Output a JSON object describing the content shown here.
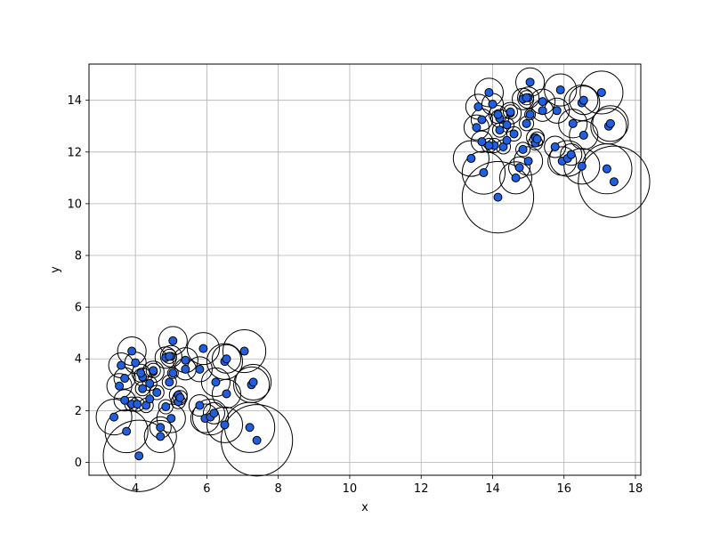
{
  "chart_data": {
    "type": "scatter",
    "xlabel": "x",
    "ylabel": "y",
    "xlim": [
      2.7,
      18.15
    ],
    "ylim": [
      -0.5,
      15.4
    ],
    "xticks": [
      4,
      6,
      8,
      10,
      12,
      14,
      16,
      18
    ],
    "yticks": [
      0,
      2,
      4,
      6,
      8,
      10,
      12,
      14
    ],
    "grid": true,
    "marker_color": "#1f5fe0",
    "edge_color": "#000000",
    "series": [
      {
        "points": [
          {
            "x": 4.1,
            "y": 0.25,
            "r": 1.0
          },
          {
            "x": 7.4,
            "y": 0.85,
            "r": 1.0
          },
          {
            "x": 4.7,
            "y": 1.0,
            "r": 0.45
          },
          {
            "x": 7.2,
            "y": 1.35,
            "r": 0.7
          },
          {
            "x": 3.75,
            "y": 1.2,
            "r": 0.6
          },
          {
            "x": 4.7,
            "y": 1.35,
            "r": 0.3
          },
          {
            "x": 6.5,
            "y": 1.45,
            "r": 0.5
          },
          {
            "x": 3.4,
            "y": 1.75,
            "r": 0.5
          },
          {
            "x": 5.0,
            "y": 1.7,
            "r": 0.4
          },
          {
            "x": 5.95,
            "y": 1.7,
            "r": 0.4
          },
          {
            "x": 6.1,
            "y": 1.75,
            "r": 0.5
          },
          {
            "x": 6.2,
            "y": 1.9,
            "r": 0.3
          },
          {
            "x": 4.85,
            "y": 2.15,
            "r": 0.2
          },
          {
            "x": 4.3,
            "y": 2.2,
            "r": 0.2
          },
          {
            "x": 3.9,
            "y": 2.25,
            "r": 0.2
          },
          {
            "x": 4.05,
            "y": 2.25,
            "r": 0.2
          },
          {
            "x": 5.8,
            "y": 2.2,
            "r": 0.3
          },
          {
            "x": 5.2,
            "y": 2.35,
            "r": 0.2
          },
          {
            "x": 3.7,
            "y": 2.4,
            "r": 0.3
          },
          {
            "x": 4.4,
            "y": 2.45,
            "r": 0.1
          },
          {
            "x": 5.2,
            "y": 2.6,
            "r": 0.25
          },
          {
            "x": 5.25,
            "y": 2.5,
            "r": 0.2
          },
          {
            "x": 6.55,
            "y": 2.65,
            "r": 0.4
          },
          {
            "x": 4.6,
            "y": 2.7,
            "r": 0.2
          },
          {
            "x": 4.2,
            "y": 2.85,
            "r": 0.2
          },
          {
            "x": 3.55,
            "y": 2.95,
            "r": 0.35
          },
          {
            "x": 7.25,
            "y": 3.0,
            "r": 0.5
          },
          {
            "x": 7.3,
            "y": 3.1,
            "r": 0.5
          },
          {
            "x": 4.4,
            "y": 3.05,
            "r": 0.2
          },
          {
            "x": 4.95,
            "y": 3.1,
            "r": 0.2
          },
          {
            "x": 6.25,
            "y": 3.1,
            "r": 0.4
          },
          {
            "x": 3.7,
            "y": 3.25,
            "r": 0.3
          },
          {
            "x": 4.2,
            "y": 3.3,
            "r": 0.25
          },
          {
            "x": 5.05,
            "y": 3.45,
            "r": 0.15
          },
          {
            "x": 4.15,
            "y": 3.45,
            "r": 0.25
          },
          {
            "x": 4.5,
            "y": 3.5,
            "r": 0.3
          },
          {
            "x": 4.5,
            "y": 3.55,
            "r": 0.2
          },
          {
            "x": 5.4,
            "y": 3.6,
            "r": 0.3
          },
          {
            "x": 5.8,
            "y": 3.6,
            "r": 0.35
          },
          {
            "x": 3.6,
            "y": 3.75,
            "r": 0.35
          },
          {
            "x": 4.0,
            "y": 3.85,
            "r": 0.3
          },
          {
            "x": 5.4,
            "y": 3.95,
            "r": 0.35
          },
          {
            "x": 6.5,
            "y": 3.9,
            "r": 0.5
          },
          {
            "x": 6.55,
            "y": 4.0,
            "r": 0.4
          },
          {
            "x": 4.85,
            "y": 4.05,
            "r": 0.3
          },
          {
            "x": 5.0,
            "y": 4.1,
            "r": 0.3
          },
          {
            "x": 4.95,
            "y": 4.1,
            "r": 0.2
          },
          {
            "x": 3.9,
            "y": 4.3,
            "r": 0.4
          },
          {
            "x": 5.9,
            "y": 4.4,
            "r": 0.45
          },
          {
            "x": 7.05,
            "y": 4.3,
            "r": 0.6
          },
          {
            "x": 5.05,
            "y": 4.7,
            "r": 0.4
          },
          {
            "x": 14.15,
            "y": 10.25,
            "r": 1.0
          },
          {
            "x": 17.4,
            "y": 10.85,
            "r": 1.0
          },
          {
            "x": 14.65,
            "y": 11.0,
            "r": 0.45
          },
          {
            "x": 13.75,
            "y": 11.2,
            "r": 0.6
          },
          {
            "x": 17.2,
            "y": 11.35,
            "r": 0.7
          },
          {
            "x": 14.75,
            "y": 11.4,
            "r": 0.3
          },
          {
            "x": 16.5,
            "y": 11.45,
            "r": 0.5
          },
          {
            "x": 15.0,
            "y": 11.65,
            "r": 0.4
          },
          {
            "x": 15.95,
            "y": 11.65,
            "r": 0.4
          },
          {
            "x": 16.1,
            "y": 11.75,
            "r": 0.5
          },
          {
            "x": 13.4,
            "y": 11.75,
            "r": 0.5
          },
          {
            "x": 16.2,
            "y": 11.9,
            "r": 0.3
          },
          {
            "x": 14.85,
            "y": 12.1,
            "r": 0.2
          },
          {
            "x": 15.75,
            "y": 12.2,
            "r": 0.3
          },
          {
            "x": 14.3,
            "y": 12.2,
            "r": 0.2
          },
          {
            "x": 14.05,
            "y": 12.25,
            "r": 0.2
          },
          {
            "x": 13.9,
            "y": 12.25,
            "r": 0.2
          },
          {
            "x": 15.2,
            "y": 12.35,
            "r": 0.2
          },
          {
            "x": 13.7,
            "y": 12.4,
            "r": 0.3
          },
          {
            "x": 14.4,
            "y": 12.45,
            "r": 0.1
          },
          {
            "x": 15.2,
            "y": 12.55,
            "r": 0.25
          },
          {
            "x": 15.25,
            "y": 12.5,
            "r": 0.2
          },
          {
            "x": 16.55,
            "y": 12.65,
            "r": 0.4
          },
          {
            "x": 14.6,
            "y": 12.7,
            "r": 0.2
          },
          {
            "x": 14.2,
            "y": 12.85,
            "r": 0.2
          },
          {
            "x": 13.55,
            "y": 12.95,
            "r": 0.35
          },
          {
            "x": 17.25,
            "y": 13.0,
            "r": 0.5
          },
          {
            "x": 17.3,
            "y": 13.1,
            "r": 0.5
          },
          {
            "x": 14.4,
            "y": 13.05,
            "r": 0.2
          },
          {
            "x": 14.95,
            "y": 13.1,
            "r": 0.2
          },
          {
            "x": 16.25,
            "y": 13.1,
            "r": 0.4
          },
          {
            "x": 13.7,
            "y": 13.25,
            "r": 0.3
          },
          {
            "x": 14.2,
            "y": 13.3,
            "r": 0.25
          },
          {
            "x": 15.05,
            "y": 13.45,
            "r": 0.15
          },
          {
            "x": 14.15,
            "y": 13.45,
            "r": 0.25
          },
          {
            "x": 14.5,
            "y": 13.5,
            "r": 0.3
          },
          {
            "x": 14.5,
            "y": 13.55,
            "r": 0.2
          },
          {
            "x": 15.4,
            "y": 13.6,
            "r": 0.3
          },
          {
            "x": 15.8,
            "y": 13.6,
            "r": 0.35
          },
          {
            "x": 13.6,
            "y": 13.75,
            "r": 0.35
          },
          {
            "x": 14.0,
            "y": 13.85,
            "r": 0.3
          },
          {
            "x": 15.4,
            "y": 13.95,
            "r": 0.35
          },
          {
            "x": 16.5,
            "y": 13.9,
            "r": 0.5
          },
          {
            "x": 16.55,
            "y": 14.0,
            "r": 0.4
          },
          {
            "x": 14.85,
            "y": 14.05,
            "r": 0.3
          },
          {
            "x": 15.0,
            "y": 14.1,
            "r": 0.3
          },
          {
            "x": 14.95,
            "y": 14.1,
            "r": 0.2
          },
          {
            "x": 13.9,
            "y": 14.3,
            "r": 0.4
          },
          {
            "x": 15.9,
            "y": 14.4,
            "r": 0.45
          },
          {
            "x": 17.05,
            "y": 14.3,
            "r": 0.6
          },
          {
            "x": 15.05,
            "y": 14.7,
            "r": 0.4
          }
        ]
      }
    ]
  }
}
